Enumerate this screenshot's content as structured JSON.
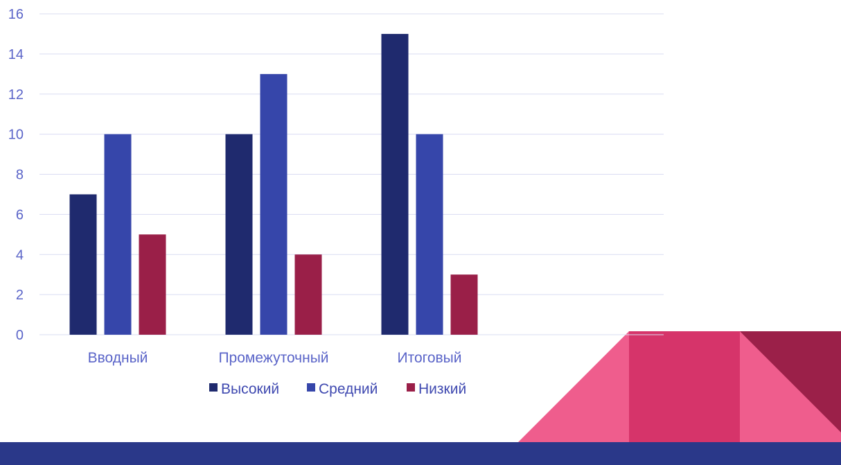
{
  "chart_data": {
    "type": "bar",
    "categories": [
      "Вводный",
      "Промежуточный",
      "Итоговый"
    ],
    "series": [
      {
        "name": "Высокий",
        "values": [
          7,
          10,
          15
        ],
        "color": "#1f2a6e"
      },
      {
        "name": "Средний",
        "values": [
          10,
          13,
          10
        ],
        "color": "#3646aa"
      },
      {
        "name": "Низкий",
        "values": [
          5,
          4,
          3
        ],
        "color": "#9a1f48"
      }
    ],
    "yticks": [
      "0",
      "2",
      "4",
      "6",
      "8",
      "10",
      "12",
      "14",
      "16"
    ],
    "ylim": [
      0,
      16
    ],
    "grid": true,
    "legend": "bottom"
  },
  "theme": {
    "gridline_color": "#d9dcf2",
    "axis_text_color": "#5a64c8",
    "footer_band_color": "#2a3889",
    "decor_pink_light": "#ef5d8d",
    "decor_pink_mid": "#d6346a",
    "decor_crimson": "#9b2049"
  }
}
